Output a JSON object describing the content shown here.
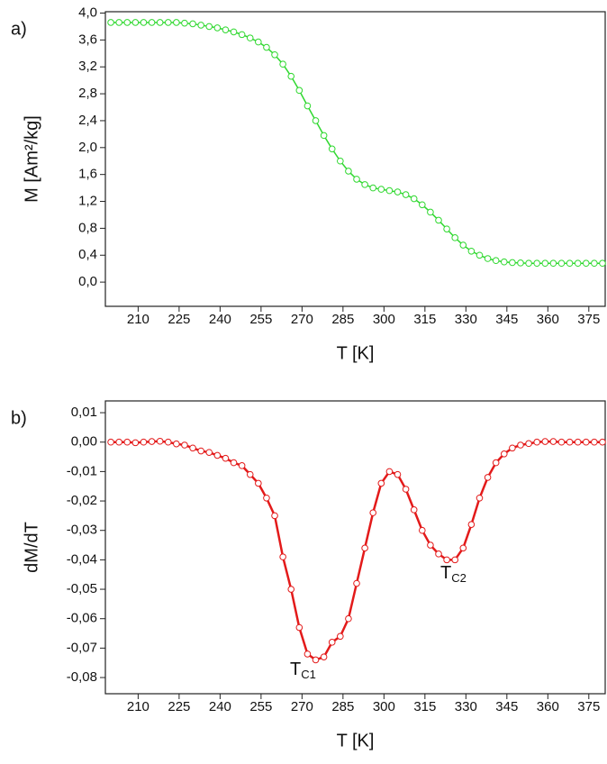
{
  "chart_data": [
    {
      "type": "line",
      "panel_label": "a)",
      "x_label": "T [K]",
      "y_label": "M [Am²/kg]",
      "x": [
        200,
        203,
        206,
        209,
        212,
        215,
        218,
        221,
        224,
        227,
        230,
        233,
        236,
        239,
        242,
        245,
        248,
        251,
        254,
        257,
        260,
        263,
        266,
        269,
        272,
        275,
        278,
        281,
        284,
        287,
        290,
        293,
        296,
        299,
        302,
        305,
        308,
        311,
        314,
        317,
        320,
        323,
        326,
        329,
        332,
        335,
        338,
        341,
        344,
        347,
        350,
        353,
        356,
        359,
        362,
        365,
        368,
        371,
        374,
        377,
        380
      ],
      "series": [
        {
          "color": "#2fd82f",
          "values": [
            3.86,
            3.86,
            3.86,
            3.86,
            3.86,
            3.86,
            3.86,
            3.86,
            3.86,
            3.85,
            3.84,
            3.82,
            3.8,
            3.78,
            3.75,
            3.72,
            3.68,
            3.63,
            3.57,
            3.49,
            3.38,
            3.24,
            3.06,
            2.85,
            2.62,
            2.4,
            2.18,
            1.98,
            1.8,
            1.65,
            1.53,
            1.45,
            1.4,
            1.38,
            1.36,
            1.34,
            1.3,
            1.24,
            1.15,
            1.04,
            0.92,
            0.79,
            0.66,
            0.55,
            0.46,
            0.4,
            0.35,
            0.32,
            0.3,
            0.29,
            0.285,
            0.28,
            0.28,
            0.28,
            0.28,
            0.28,
            0.28,
            0.28,
            0.28,
            0.28,
            0.28
          ]
        }
      ],
      "xlim": [
        198,
        381
      ],
      "xticks": [
        210,
        225,
        240,
        255,
        270,
        285,
        300,
        315,
        330,
        345,
        360,
        375
      ],
      "ylim": [
        -0.36,
        4.02
      ],
      "yticks": [
        {
          "value": 0,
          "label": "0,0"
        },
        {
          "value": 0.4,
          "label": "0,4"
        },
        {
          "value": 0.8,
          "label": "0,8"
        },
        {
          "value": 1.2,
          "label": "1,2"
        },
        {
          "value": 1.6,
          "label": "1,6"
        },
        {
          "value": 2.0,
          "label": "2,0"
        },
        {
          "value": 2.4,
          "label": "2,4"
        },
        {
          "value": 2.8,
          "label": "2,8"
        },
        {
          "value": 3.2,
          "label": "3,2"
        },
        {
          "value": 3.6,
          "label": "3,6"
        },
        {
          "value": 4.0,
          "label": "4,0"
        }
      ]
    },
    {
      "type": "line",
      "panel_label": "b)",
      "x_label": "T [K]",
      "y_label": "dM/dT",
      "x": [
        200,
        203,
        206,
        209,
        212,
        215,
        218,
        221,
        224,
        227,
        230,
        233,
        236,
        239,
        242,
        245,
        248,
        251,
        254,
        257,
        260,
        263,
        266,
        269,
        272,
        275,
        278,
        281,
        284,
        287,
        290,
        293,
        296,
        299,
        302,
        305,
        308,
        311,
        314,
        317,
        320,
        323,
        326,
        329,
        332,
        335,
        338,
        341,
        344,
        347,
        350,
        353,
        356,
        359,
        362,
        365,
        368,
        371,
        374,
        377,
        380
      ],
      "series": [
        {
          "color": "#e31a1a",
          "values": [
            0,
            0,
            0,
            -0.0002,
            0,
            0.0002,
            0.0003,
            0,
            -0.0006,
            -0.001,
            -0.002,
            -0.003,
            -0.0035,
            -0.0045,
            -0.0055,
            -0.007,
            -0.008,
            -0.011,
            -0.014,
            -0.019,
            -0.025,
            -0.039,
            -0.05,
            -0.063,
            -0.072,
            -0.074,
            -0.073,
            -0.068,
            -0.066,
            -0.06,
            -0.048,
            -0.036,
            -0.024,
            -0.014,
            -0.01,
            -0.011,
            -0.016,
            -0.023,
            -0.03,
            -0.035,
            -0.038,
            -0.04,
            -0.04,
            -0.036,
            -0.028,
            -0.019,
            -0.012,
            -0.007,
            -0.004,
            -0.002,
            -0.001,
            -0.0005,
            0,
            0.0002,
            0.0002,
            0,
            0,
            0,
            0,
            0,
            0
          ]
        }
      ],
      "xlim": [
        198,
        381
      ],
      "xticks": [
        210,
        225,
        240,
        255,
        270,
        285,
        300,
        315,
        330,
        345,
        360,
        375
      ],
      "ylim": [
        -0.0855,
        0.014
      ],
      "yticks": [
        {
          "value": -0.08,
          "label": "-0,08"
        },
        {
          "value": -0.07,
          "label": "-0,07"
        },
        {
          "value": -0.06,
          "label": "-0,06"
        },
        {
          "value": -0.05,
          "label": "-0,05"
        },
        {
          "value": -0.04,
          "label": "-0,04"
        },
        {
          "value": -0.03,
          "label": "-0,03"
        },
        {
          "value": -0.02,
          "label": "-0,02"
        },
        {
          "value": -0.01,
          "label": "-0,01"
        },
        {
          "value": 0,
          "label": "0,00"
        },
        {
          "value": 0.01,
          "label": "0,01"
        }
      ],
      "annotations": [
        {
          "text": "T",
          "subscript": "C1"
        },
        {
          "text": "T",
          "subscript": "C2"
        }
      ]
    }
  ]
}
